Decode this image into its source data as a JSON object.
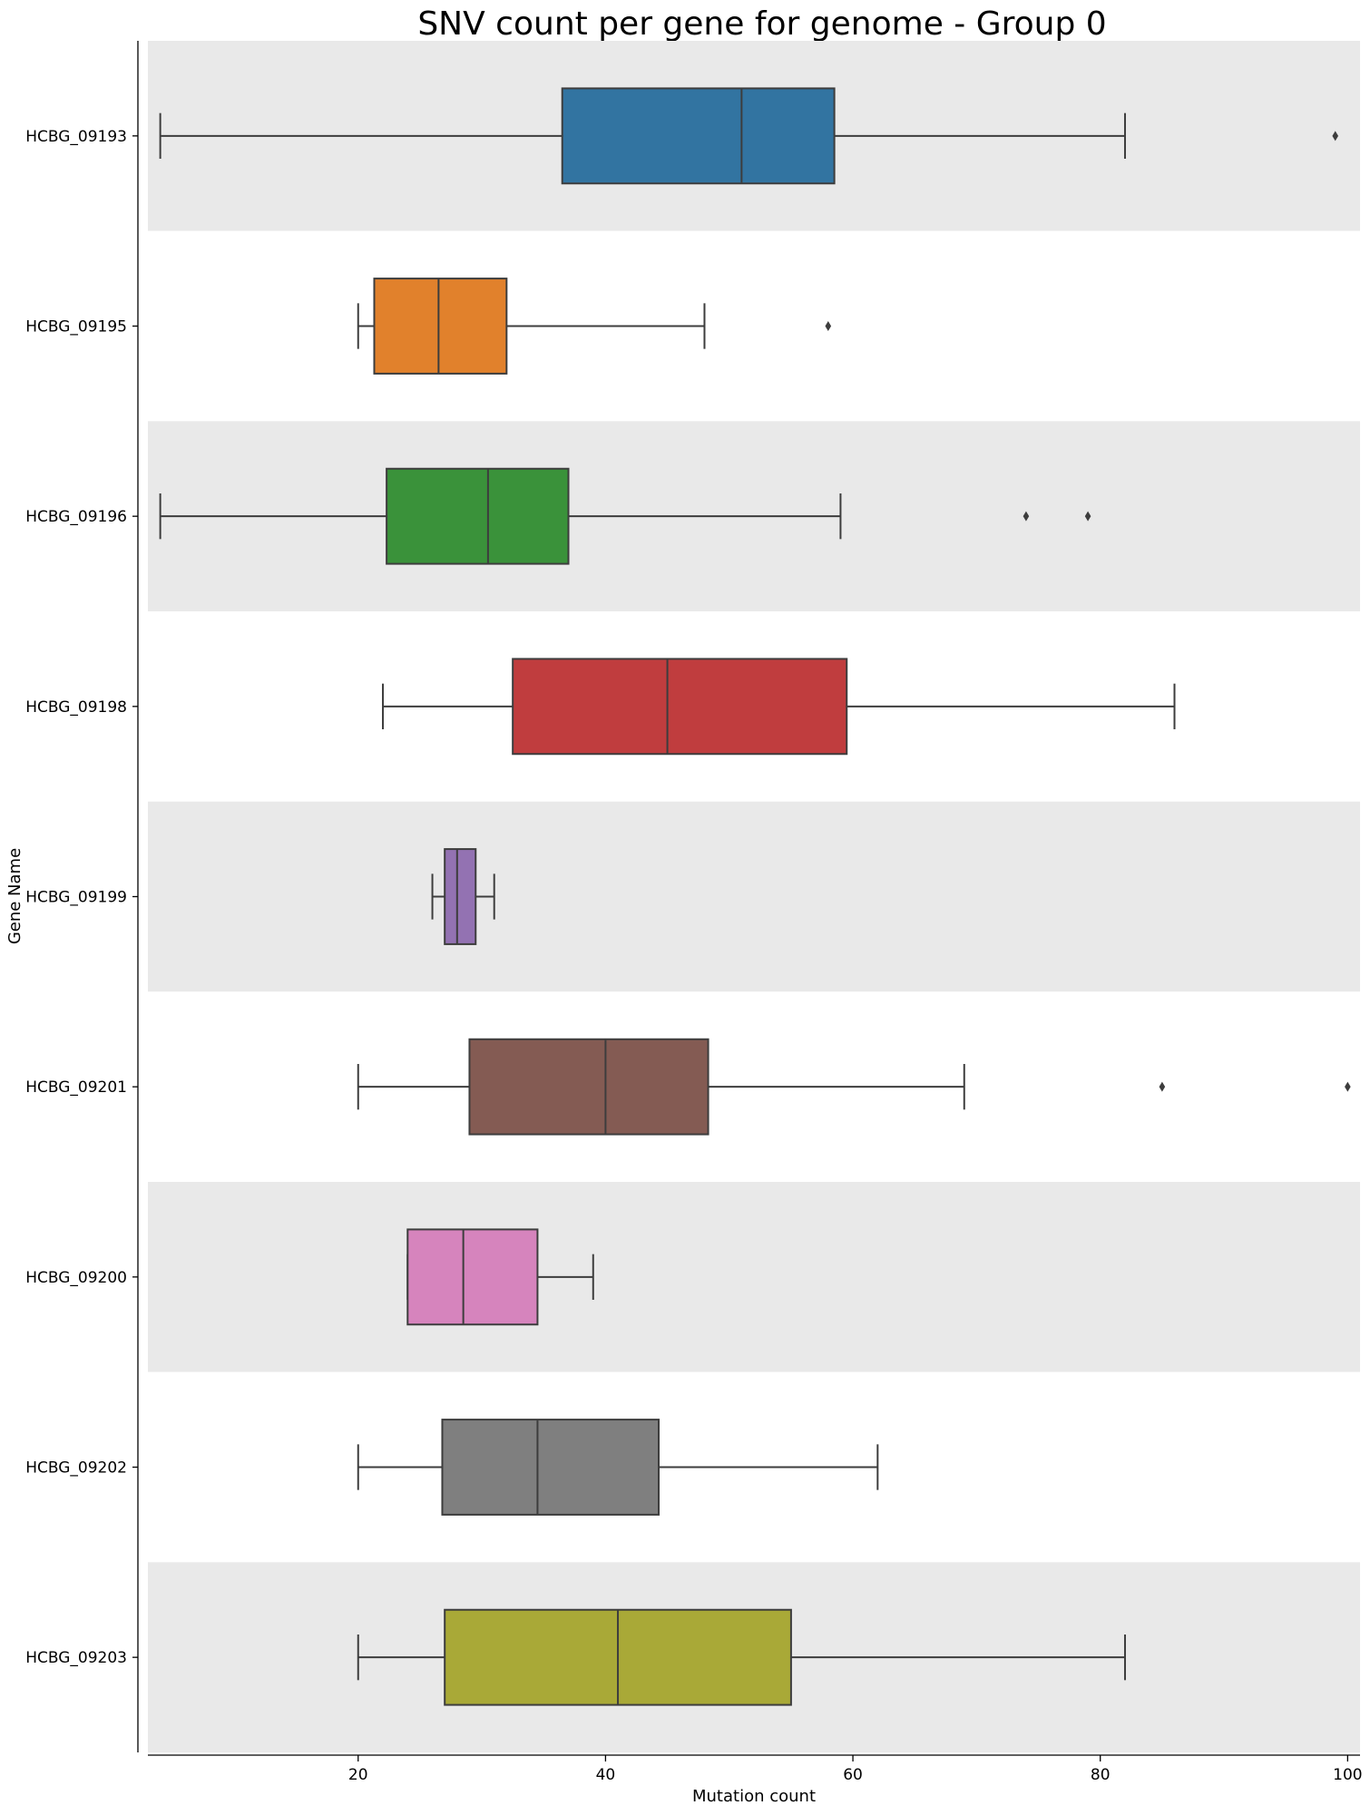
{
  "chart_data": {
    "type": "boxplot",
    "orientation": "horizontal",
    "title": "SNV count per gene for genome - Group 0",
    "xlabel": "Mutation count",
    "ylabel": "Gene Name",
    "xlim": [
      3,
      101
    ],
    "xticks": [
      20,
      40,
      60,
      80,
      100
    ],
    "xtick_labels": [
      "20",
      "40",
      "60",
      "80",
      "100"
    ],
    "categories": [
      "HCBG_09193",
      "HCBG_09195",
      "HCBG_09196",
      "HCBG_09198",
      "HCBG_09199",
      "HCBG_09201",
      "HCBG_09200",
      "HCBG_09202",
      "HCBG_09203"
    ],
    "series": [
      {
        "name": "HCBG_09193",
        "color": "#3274a1",
        "whisker_low": 4,
        "q1": 36.5,
        "median": 51,
        "q3": 58.5,
        "whisker_high": 82,
        "outliers": [
          99
        ]
      },
      {
        "name": "HCBG_09195",
        "color": "#e1812c",
        "whisker_low": 20,
        "q1": 21.3,
        "median": 26.5,
        "q3": 32,
        "whisker_high": 48,
        "outliers": [
          58
        ]
      },
      {
        "name": "HCBG_09196",
        "color": "#3a923a",
        "whisker_low": 4,
        "q1": 22.3,
        "median": 30.5,
        "q3": 37,
        "whisker_high": 59,
        "outliers": [
          74,
          79
        ]
      },
      {
        "name": "HCBG_09198",
        "color": "#c03d3e",
        "whisker_low": 22,
        "q1": 32.5,
        "median": 45,
        "q3": 59.5,
        "whisker_high": 86,
        "outliers": []
      },
      {
        "name": "HCBG_09199",
        "color": "#9372b2",
        "whisker_low": 26,
        "q1": 27,
        "median": 28,
        "q3": 29.5,
        "whisker_high": 31,
        "outliers": []
      },
      {
        "name": "HCBG_09201",
        "color": "#845b53",
        "whisker_low": 20,
        "q1": 29,
        "median": 40,
        "q3": 48.3,
        "whisker_high": 69,
        "outliers": [
          85,
          100
        ]
      },
      {
        "name": "HCBG_09200",
        "color": "#d684bd",
        "whisker_low": 24,
        "q1": 24,
        "median": 28.5,
        "q3": 34.5,
        "whisker_high": 39,
        "outliers": []
      },
      {
        "name": "HCBG_09202",
        "color": "#7f7f7f",
        "whisker_low": 20,
        "q1": 26.8,
        "median": 34.5,
        "q3": 44.3,
        "whisker_high": 62,
        "outliers": []
      },
      {
        "name": "HCBG_09203",
        "color": "#a9a937",
        "whisker_low": 20,
        "q1": 27,
        "median": 41,
        "q3": 55,
        "whisker_high": 82,
        "outliers": []
      }
    ],
    "band_colors": [
      "#e9e9e9",
      "#ffffff"
    ],
    "line_color": "#3d3d3d",
    "grid": false,
    "legend": "none"
  }
}
